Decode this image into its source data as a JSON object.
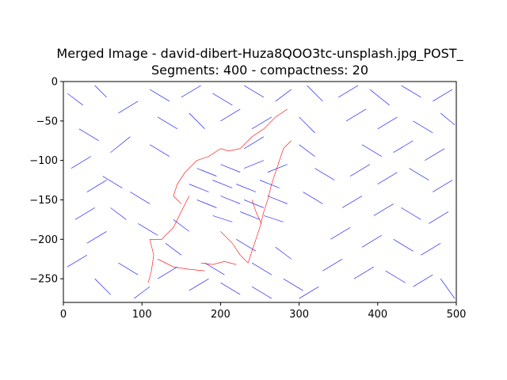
{
  "chart_data": {
    "type": "line",
    "title_line1": "Merged Image - david-dibert-Huza8QOO3tc-unsplash.jpg_POST_",
    "title_line2": "Segments: 400 - compactness: 20",
    "xlabel": "",
    "ylabel": "",
    "xlim": [
      0,
      500
    ],
    "ylim": [
      -280,
      0
    ],
    "x_ticks": [
      0,
      100,
      200,
      300,
      400,
      500
    ],
    "y_ticks": [
      0,
      -50,
      -100,
      -150,
      -200,
      -250
    ],
    "grid": false,
    "series": [
      {
        "color": "#0000ff",
        "description": "short field-line segments over whole image",
        "segments": [
          [
            [
              5,
              -15
            ],
            [
              25,
              -30
            ]
          ],
          [
            [
              40,
              -5
            ],
            [
              55,
              -20
            ]
          ],
          [
            [
              70,
              -40
            ],
            [
              95,
              -25
            ]
          ],
          [
            [
              20,
              -60
            ],
            [
              45,
              -75
            ]
          ],
          [
            [
              60,
              -90
            ],
            [
              85,
              -70
            ]
          ],
          [
            [
              10,
              -110
            ],
            [
              35,
              -95
            ]
          ],
          [
            [
              30,
              -140
            ],
            [
              55,
              -125
            ]
          ],
          [
            [
              15,
              -175
            ],
            [
              40,
              -160
            ]
          ],
          [
            [
              30,
              -205
            ],
            [
              55,
              -190
            ]
          ],
          [
            [
              5,
              -235
            ],
            [
              30,
              -220
            ]
          ],
          [
            [
              40,
              -250
            ],
            [
              60,
              -270
            ]
          ],
          [
            [
              70,
              -230
            ],
            [
              95,
              -245
            ]
          ],
          [
            [
              110,
              -10
            ],
            [
              135,
              -25
            ]
          ],
          [
            [
              150,
              -20
            ],
            [
              175,
              -5
            ]
          ],
          [
            [
              190,
              -15
            ],
            [
              215,
              -30
            ]
          ],
          [
            [
              230,
              -5
            ],
            [
              255,
              -20
            ]
          ],
          [
            [
              270,
              -25
            ],
            [
              290,
              -10
            ]
          ],
          [
            [
              310,
              -5
            ],
            [
              330,
              -25
            ]
          ],
          [
            [
              350,
              -20
            ],
            [
              375,
              -5
            ]
          ],
          [
            [
              390,
              -10
            ],
            [
              415,
              -30
            ]
          ],
          [
            [
              430,
              -5
            ],
            [
              455,
              -20
            ]
          ],
          [
            [
              470,
              -25
            ],
            [
              495,
              -10
            ]
          ],
          [
            [
              120,
              -45
            ],
            [
              145,
              -60
            ]
          ],
          [
            [
              160,
              -40
            ],
            [
              180,
              -60
            ]
          ],
          [
            [
              200,
              -50
            ],
            [
              225,
              -35
            ]
          ],
          [
            [
              240,
              -60
            ],
            [
              265,
              -45
            ]
          ],
          [
            [
              300,
              -45
            ],
            [
              320,
              -65
            ]
          ],
          [
            [
              360,
              -50
            ],
            [
              385,
              -35
            ]
          ],
          [
            [
              400,
              -60
            ],
            [
              425,
              -45
            ]
          ],
          [
            [
              445,
              -50
            ],
            [
              470,
              -65
            ]
          ],
          [
            [
              480,
              -40
            ],
            [
              498,
              -55
            ]
          ],
          [
            [
              110,
              -80
            ],
            [
              135,
              -95
            ]
          ],
          [
            [
              230,
              -85
            ],
            [
              255,
              -70
            ]
          ],
          [
            [
              380,
              -80
            ],
            [
              405,
              -95
            ]
          ],
          [
            [
              420,
              -90
            ],
            [
              445,
              -75
            ]
          ],
          [
            [
              460,
              -100
            ],
            [
              485,
              -85
            ]
          ],
          [
            [
              365,
              -120
            ],
            [
              390,
              -105
            ]
          ],
          [
            [
              400,
              -130
            ],
            [
              425,
              -115
            ]
          ],
          [
            [
              440,
              -110
            ],
            [
              465,
              -125
            ]
          ],
          [
            [
              470,
              -140
            ],
            [
              495,
              -125
            ]
          ],
          [
            [
              355,
              -160
            ],
            [
              380,
              -145
            ]
          ],
          [
            [
              395,
              -170
            ],
            [
              420,
              -155
            ]
          ],
          [
            [
              430,
              -160
            ],
            [
              455,
              -175
            ]
          ],
          [
            [
              465,
              -180
            ],
            [
              490,
              -165
            ]
          ],
          [
            [
              340,
              -200
            ],
            [
              365,
              -185
            ]
          ],
          [
            [
              380,
              -210
            ],
            [
              405,
              -195
            ]
          ],
          [
            [
              420,
              -200
            ],
            [
              445,
              -215
            ]
          ],
          [
            [
              455,
              -220
            ],
            [
              480,
              -205
            ]
          ],
          [
            [
              330,
              -240
            ],
            [
              355,
              -225
            ]
          ],
          [
            [
              370,
              -250
            ],
            [
              395,
              -235
            ]
          ],
          [
            [
              410,
              -240
            ],
            [
              435,
              -255
            ]
          ],
          [
            [
              445,
              -260
            ],
            [
              470,
              -245
            ]
          ],
          [
            [
              480,
              -250
            ],
            [
              498,
              -275
            ]
          ],
          [
            [
              120,
              -250
            ],
            [
              145,
              -235
            ]
          ],
          [
            [
              160,
              -265
            ],
            [
              185,
              -250
            ]
          ],
          [
            [
              200,
              -255
            ],
            [
              225,
              -270
            ]
          ],
          [
            [
              240,
              -260
            ],
            [
              265,
              -275
            ]
          ],
          [
            [
              280,
              -250
            ],
            [
              305,
              -265
            ]
          ],
          [
            [
              300,
              -275
            ],
            [
              325,
              -260
            ]
          ],
          [
            [
              90,
              -275
            ],
            [
              110,
              -260
            ]
          ],
          [
            [
              170,
              -110
            ],
            [
              195,
              -120
            ]
          ],
          [
            [
              200,
              -105
            ],
            [
              225,
              -115
            ]
          ],
          [
            [
              230,
              -110
            ],
            [
              255,
              -100
            ]
          ],
          [
            [
              260,
              -115
            ],
            [
              285,
              -105
            ]
          ],
          [
            [
              160,
              -130
            ],
            [
              185,
              -140
            ]
          ],
          [
            [
              190,
              -125
            ],
            [
              215,
              -135
            ]
          ],
          [
            [
              220,
              -130
            ],
            [
              245,
              -140
            ]
          ],
          [
            [
              250,
              -125
            ],
            [
              275,
              -135
            ]
          ],
          [
            [
              170,
              -150
            ],
            [
              195,
              -160
            ]
          ],
          [
            [
              200,
              -145
            ],
            [
              225,
              -155
            ]
          ],
          [
            [
              230,
              -150
            ],
            [
              255,
              -160
            ]
          ],
          [
            [
              260,
              -145
            ],
            [
              285,
              -155
            ]
          ],
          [
            [
              190,
              -170
            ],
            [
              215,
              -178
            ]
          ],
          [
            [
              225,
              -165
            ],
            [
              250,
              -175
            ]
          ],
          [
            [
              255,
              -170
            ],
            [
              280,
              -178
            ]
          ],
          [
            [
              140,
              -175
            ],
            [
              160,
              -190
            ]
          ],
          [
            [
              300,
              -80
            ],
            [
              320,
              -95
            ]
          ],
          [
            [
              320,
              -110
            ],
            [
              345,
              -125
            ]
          ],
          [
            [
              305,
              -140
            ],
            [
              330,
              -155
            ]
          ],
          [
            [
              85,
              -140
            ],
            [
              110,
              -155
            ]
          ],
          [
            [
              95,
              -180
            ],
            [
              120,
              -195
            ]
          ],
          [
            [
              130,
              -205
            ],
            [
              150,
              -220
            ]
          ],
          [
            [
              220,
              -200
            ],
            [
              245,
              -215
            ]
          ],
          [
            [
              270,
              -210
            ],
            [
              290,
              -225
            ]
          ],
          [
            [
              240,
              -230
            ],
            [
              265,
              -245
            ]
          ],
          [
            [
              180,
              -230
            ],
            [
              205,
              -245
            ]
          ],
          [
            [
              60,
              -160
            ],
            [
              80,
              -175
            ]
          ],
          [
            [
              50,
              -120
            ],
            [
              75,
              -135
            ]
          ]
        ]
      },
      {
        "color": "#ff0000",
        "description": "red boundary segments",
        "segments": [
          [
            [
              285,
              -35
            ],
            [
              270,
              -45
            ],
            [
              255,
              -60
            ],
            [
              240,
              -70
            ],
            [
              225,
              -85
            ]
          ],
          [
            [
              200,
              -85
            ],
            [
              185,
              -95
            ],
            [
              170,
              -100
            ],
            [
              155,
              -115
            ],
            [
              145,
              -130
            ],
            [
              140,
              -145
            ],
            [
              150,
              -155
            ]
          ],
          [
            [
              225,
              -85
            ],
            [
              210,
              -88
            ],
            [
              200,
              -85
            ]
          ],
          [
            [
              290,
              -75
            ],
            [
              280,
              -85
            ],
            [
              275,
              -100
            ],
            [
              270,
              -115
            ],
            [
              265,
              -130
            ],
            [
              260,
              -150
            ],
            [
              255,
              -165
            ]
          ],
          [
            [
              255,
              -165
            ],
            [
              250,
              -185
            ],
            [
              245,
              -200
            ],
            [
              240,
              -215
            ],
            [
              235,
              -230
            ]
          ],
          [
            [
              110,
              -200
            ],
            [
              115,
              -220
            ],
            [
              112,
              -240
            ],
            [
              108,
              -255
            ]
          ],
          [
            [
              120,
              -225
            ],
            [
              140,
              -235
            ],
            [
              160,
              -238
            ],
            [
              180,
              -240
            ]
          ],
          [
            [
              200,
              -190
            ],
            [
              215,
              -205
            ],
            [
              225,
              -220
            ],
            [
              235,
              -230
            ]
          ],
          [
            [
              160,
              -145
            ],
            [
              150,
              -165
            ],
            [
              140,
              -185
            ],
            [
              125,
              -200
            ],
            [
              110,
              -200
            ]
          ],
          [
            [
              240,
              -150
            ],
            [
              245,
              -165
            ],
            [
              252,
              -180
            ]
          ],
          [
            [
              175,
              -230
            ],
            [
              190,
              -232
            ],
            [
              205,
              -228
            ],
            [
              220,
              -232
            ]
          ]
        ]
      }
    ]
  }
}
